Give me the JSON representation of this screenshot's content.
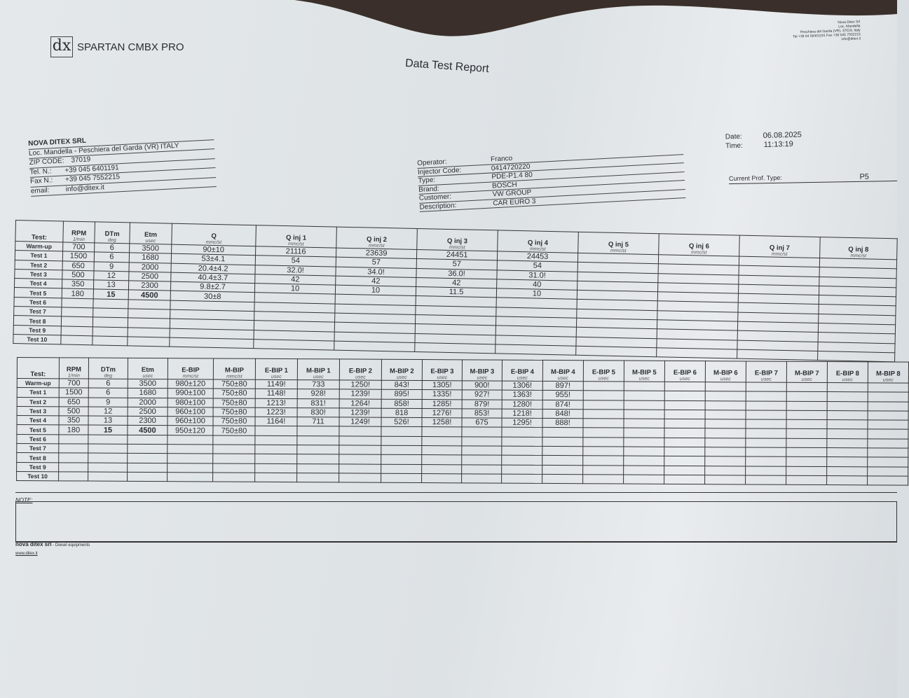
{
  "brand": {
    "logo_letters": "dx",
    "product": "SPARTAN CMBX PRO"
  },
  "sender_address": [
    "Nova Ditex Srl",
    "Loc. Mandella",
    "Peschiera del Garda (VR), 37019, Italy",
    "Tel +39 04 56401191 Fax +39 045 7552215",
    "info@ditex.it"
  ],
  "title": "Data Test Report",
  "company": {
    "name": "NOVA DITEX SRL",
    "address": "Loc. Mandella - Peschiera del Garda (VR) ITALY",
    "zip_label": "ZIP CODE:",
    "zip": "37019",
    "tel_label": "Tel. N.:",
    "tel": "+39 045 6401191",
    "fax_label": "Fax N.:",
    "fax": "+39 045 7552215",
    "email_label": "email:",
    "email": "info@ditex.it"
  },
  "info": [
    {
      "label": "Operator:",
      "value": "Franco"
    },
    {
      "label": "Injector Code:",
      "value": "0414720220"
    },
    {
      "label": "Type:",
      "value": "PDE-P1.4 80"
    },
    {
      "label": "Brand:",
      "value": "BOSCH"
    },
    {
      "label": "Customer:",
      "value": "VW GROUP"
    },
    {
      "label": "Description:",
      "value": "CAR EURO 3"
    }
  ],
  "date": {
    "date_label": "Date:",
    "date": "06.08.2025",
    "time_label": "Time:",
    "time": "11:13:19"
  },
  "profile": {
    "label": "Current Prof. Type:",
    "value": "P5"
  },
  "rows": [
    "Warm-up",
    "Test 1",
    "Test 2",
    "Test 3",
    "Test 4",
    "Test 5",
    "Test 6",
    "Test 7",
    "Test 8",
    "Test 9",
    "Test 10"
  ],
  "table1": {
    "columns": [
      {
        "name": "Test:",
        "unit": ""
      },
      {
        "name": "RPM",
        "unit": "1/min"
      },
      {
        "name": "DTm",
        "unit": "deg"
      },
      {
        "name": "Etm",
        "unit": "usec"
      },
      {
        "name": "Q",
        "unit": "mmc/st"
      },
      {
        "name": "Q inj 1",
        "unit": "mmc/st"
      },
      {
        "name": "Q inj 2",
        "unit": "mmc/st"
      },
      {
        "name": "Q inj 3",
        "unit": "mmc/st"
      },
      {
        "name": "Q inj 4",
        "unit": "mmc/st"
      },
      {
        "name": "Q inj 5",
        "unit": "mmc/st"
      },
      {
        "name": "Q inj 6",
        "unit": "mmc/st"
      },
      {
        "name": "Q inj 7",
        "unit": "mmc/st"
      },
      {
        "name": "Q inj 8",
        "unit": "mmc/st"
      }
    ],
    "data": [
      [
        "700",
        "6",
        "3500",
        "90±10",
        "21116",
        "23639",
        "24451",
        "24453",
        "",
        "",
        "",
        ""
      ],
      [
        "1500",
        "6",
        "1680",
        "53±4.1",
        "54",
        "57",
        "57",
        "54",
        "",
        "",
        "",
        ""
      ],
      [
        "650",
        "9",
        "2000",
        "20.4±4.2",
        "32.0!",
        "34.0!",
        "36.0!",
        "31.0!",
        "",
        "",
        "",
        ""
      ],
      [
        "500",
        "12",
        "2500",
        "40.4±3.7",
        "42",
        "42",
        "42",
        "40",
        "",
        "",
        "",
        ""
      ],
      [
        "350",
        "13",
        "2300",
        "9.8±2.7",
        "10",
        "10",
        "11.5",
        "10",
        "",
        "",
        "",
        ""
      ],
      [
        "180",
        "15",
        "4500",
        "30±8",
        "",
        "",
        "",
        "",
        "",
        "",
        "",
        ""
      ]
    ]
  },
  "table2": {
    "columns": [
      {
        "name": "Test:",
        "unit": ""
      },
      {
        "name": "RPM",
        "unit": "1/min"
      },
      {
        "name": "DTm",
        "unit": "deg"
      },
      {
        "name": "Etm",
        "unit": "usec"
      },
      {
        "name": "E-BIP",
        "unit": "mmc/st"
      },
      {
        "name": "M-BIP",
        "unit": "mmc/st"
      },
      {
        "name": "E-BIP 1",
        "unit": "usec"
      },
      {
        "name": "M-BIP 1",
        "unit": "usec"
      },
      {
        "name": "E-BIP 2",
        "unit": "usec"
      },
      {
        "name": "M-BIP 2",
        "unit": "usec"
      },
      {
        "name": "E-BIP 3",
        "unit": "usec"
      },
      {
        "name": "M-BIP 3",
        "unit": "usec"
      },
      {
        "name": "E-BIP 4",
        "unit": "usec"
      },
      {
        "name": "M-BIP 4",
        "unit": "usec"
      },
      {
        "name": "E-BIP 5",
        "unit": "usec"
      },
      {
        "name": "M-BIP 5",
        "unit": "usec"
      },
      {
        "name": "E-BIP 6",
        "unit": "usec"
      },
      {
        "name": "M-BIP 6",
        "unit": "usec"
      },
      {
        "name": "E-BIP 7",
        "unit": "usec"
      },
      {
        "name": "M-BIP 7",
        "unit": "usec"
      },
      {
        "name": "E-BIP 8",
        "unit": "usec"
      },
      {
        "name": "M-BIP 8",
        "unit": "usec"
      }
    ],
    "data": [
      [
        "700",
        "6",
        "3500",
        "980±120",
        "750±80",
        "1149!",
        "733",
        "1250!",
        "843!",
        "1305!",
        "900!",
        "1306!",
        "897!",
        "",
        "",
        "",
        "",
        "",
        "",
        "",
        ""
      ],
      [
        "1500",
        "6",
        "1680",
        "990±100",
        "750±80",
        "1148!",
        "928!",
        "1239!",
        "895!",
        "1335!",
        "927!",
        "1363!",
        "955!",
        "",
        "",
        "",
        "",
        "",
        "",
        "",
        ""
      ],
      [
        "650",
        "9",
        "2000",
        "980±100",
        "750±80",
        "1213!",
        "831!",
        "1264!",
        "858!",
        "1285!",
        "879!",
        "1280!",
        "874!",
        "",
        "",
        "",
        "",
        "",
        "",
        "",
        ""
      ],
      [
        "500",
        "12",
        "2500",
        "960±100",
        "750±80",
        "1223!",
        "830!",
        "1239!",
        "818",
        "1276!",
        "853!",
        "1218!",
        "848!",
        "",
        "",
        "",
        "",
        "",
        "",
        "",
        ""
      ],
      [
        "350",
        "13",
        "2300",
        "960±100",
        "750±80",
        "1164!",
        "711",
        "1249!",
        "526!",
        "1258!",
        "675",
        "1295!",
        "888!",
        "",
        "",
        "",
        "",
        "",
        "",
        "",
        ""
      ],
      [
        "180",
        "15",
        "4500",
        "950±120",
        "750±80",
        "",
        "",
        "",
        "",
        "",
        "",
        "",
        "",
        "",
        "",
        "",
        "",
        "",
        "",
        "",
        ""
      ]
    ]
  },
  "note_label": "NOTE:",
  "footer": {
    "company": "nova ditex srl",
    "tagline": " - Diesel equipments",
    "url": "www.ditex.it"
  }
}
